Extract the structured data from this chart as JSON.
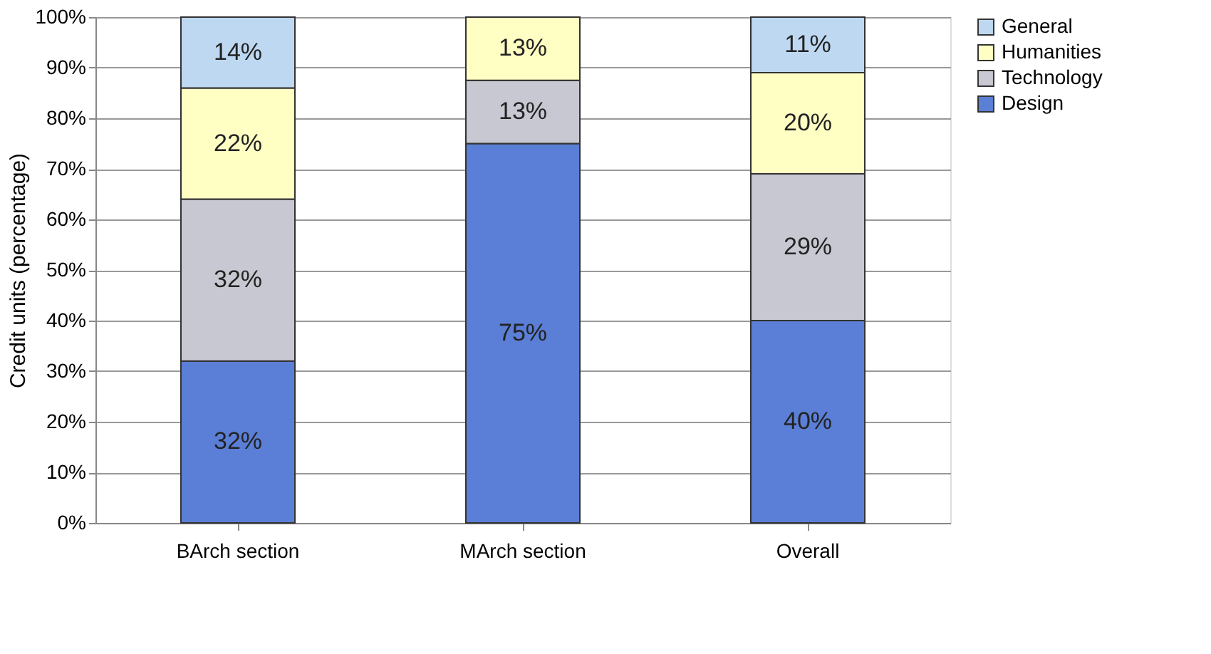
{
  "chart_data": {
    "type": "bar",
    "stacked": true,
    "ylabel": "Credit units (percentage)",
    "categories": [
      "BArch section",
      "MArch section",
      "Overall"
    ],
    "series": [
      {
        "name": "Design",
        "color": "#5b7fd6",
        "values": [
          32,
          75,
          40
        ],
        "value_labels": [
          "32%",
          "75%",
          "40%"
        ]
      },
      {
        "name": "Technology",
        "color": "#c8c8d2",
        "values": [
          32,
          12.5,
          29
        ],
        "value_labels": [
          "32%",
          "13%",
          "29%"
        ]
      },
      {
        "name": "Humanities",
        "color": "#ffffc4",
        "values": [
          22,
          12.5,
          20
        ],
        "value_labels": [
          "22%",
          "13%",
          "20%"
        ]
      },
      {
        "name": "General",
        "color": "#bed8f2",
        "values": [
          14,
          null,
          11
        ],
        "value_labels": [
          "14%",
          null,
          "11%"
        ]
      }
    ],
    "ylim": [
      0,
      100
    ],
    "yticks": [
      {
        "value": 0,
        "label": "0%"
      },
      {
        "value": 10,
        "label": "10%"
      },
      {
        "value": 20,
        "label": "20%"
      },
      {
        "value": 30,
        "label": "30%"
      },
      {
        "value": 40,
        "label": "40%"
      },
      {
        "value": 50,
        "label": "50%"
      },
      {
        "value": 60,
        "label": "60%"
      },
      {
        "value": 70,
        "label": "70%"
      },
      {
        "value": 80,
        "label": "80%"
      },
      {
        "value": 90,
        "label": "90%"
      },
      {
        "value": 100,
        "label": "100%"
      }
    ],
    "grid": "y",
    "legend": "right"
  }
}
